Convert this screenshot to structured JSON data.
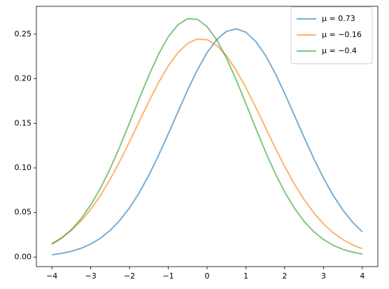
{
  "chart_data": {
    "type": "line",
    "x": [
      -4,
      -3.75,
      -3.5,
      -3.25,
      -3,
      -2.75,
      -2.5,
      -2.25,
      -2,
      -1.75,
      -1.5,
      -1.25,
      -1,
      -0.75,
      -0.5,
      -0.25,
      0,
      0.25,
      0.5,
      0.75,
      1,
      1.25,
      1.5,
      1.75,
      2,
      2.25,
      2.5,
      2.75,
      3,
      3.25,
      3.5,
      3.75,
      4
    ],
    "series": [
      {
        "name": "μ = 0.73",
        "color": "#1f77b4",
        "values": [
          0.0026,
          0.0041,
          0.0064,
          0.0098,
          0.0146,
          0.0211,
          0.0299,
          0.0411,
          0.0551,
          0.0721,
          0.0919,
          0.1142,
          0.1382,
          0.163,
          0.1875,
          0.21,
          0.2294,
          0.2441,
          0.2532,
          0.256,
          0.2522,
          0.2421,
          0.2266,
          0.2066,
          0.1836,
          0.159,
          0.1343,
          0.1105,
          0.0886,
          0.0692,
          0.0527,
          0.0391,
          0.0283
        ]
      },
      {
        "name": "μ = −0.16",
        "color": "#ff7f0e",
        "values": [
          0.0152,
          0.0215,
          0.0299,
          0.0404,
          0.0535,
          0.0691,
          0.0872,
          0.1075,
          0.1293,
          0.152,
          0.1746,
          0.1958,
          0.2145,
          0.2294,
          0.2397,
          0.2446,
          0.2438,
          0.2374,
          0.2257,
          0.2096,
          0.1901,
          0.1684,
          0.1457,
          0.1231,
          0.1016,
          0.0819,
          0.0645,
          0.0496,
          0.0372,
          0.0273,
          0.0196,
          0.0137,
          0.0094
        ]
      },
      {
        "name": "μ = −0.4",
        "color": "#2ca02c",
        "values": [
          0.0144,
          0.0213,
          0.0306,
          0.0429,
          0.0583,
          0.0771,
          0.099,
          0.1238,
          0.1504,
          0.1776,
          0.2039,
          0.2277,
          0.2471,
          0.2607,
          0.2674,
          0.2666,
          0.2585,
          0.2436,
          0.2232,
          0.1988,
          0.1722,
          0.145,
          0.1186,
          0.0944,
          0.073,
          0.0549,
          0.0401,
          0.0285,
          0.0197,
          0.0132,
          0.0087,
          0.0055,
          0.0034
        ]
      }
    ],
    "xlim": [
      -4.4,
      4.4
    ],
    "ylim": [
      -0.0107,
      0.2813
    ],
    "xticks": [
      {
        "value": -4,
        "label": "−4"
      },
      {
        "value": -3,
        "label": "−3"
      },
      {
        "value": -2,
        "label": "−2"
      },
      {
        "value": -1,
        "label": "−1"
      },
      0,
      1,
      2,
      3,
      4
    ],
    "yticks": [
      {
        "value": 0,
        "label": "0.00"
      },
      {
        "value": 0.05,
        "label": "0.05"
      },
      {
        "value": 0.1,
        "label": "0.10"
      },
      {
        "value": 0.15,
        "label": "0.15"
      },
      {
        "value": 0.2,
        "label": "0.20"
      },
      {
        "value": 0.25,
        "label": "0.25"
      }
    ],
    "legend": "upper right",
    "line_opacity": 0.6
  }
}
